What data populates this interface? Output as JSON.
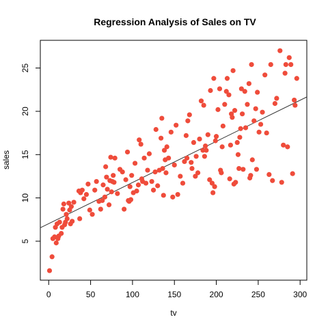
{
  "chart_data": {
    "type": "scatter",
    "title": "Regression Analysis of Sales on TV",
    "xlabel": "tv",
    "ylabel": "sales",
    "xlim": [
      -10,
      308
    ],
    "ylim": [
      0.5,
      28.2
    ],
    "xticks": [
      0,
      50,
      100,
      150,
      200,
      250,
      300
    ],
    "yticks": [
      5,
      10,
      15,
      20,
      25
    ],
    "grid": false,
    "point_color": "#ef4c3b",
    "line_color": "#333333",
    "regression": {
      "intercept": 7.03,
      "slope": 0.0475
    },
    "points": [
      [
        1,
        1.6
      ],
      [
        4,
        3.2
      ],
      [
        5,
        5.3
      ],
      [
        7,
        5.5
      ],
      [
        8,
        6.6
      ],
      [
        9,
        4.8
      ],
      [
        10,
        7.0
      ],
      [
        11,
        5.3
      ],
      [
        12,
        5.6
      ],
      [
        13,
        7.2
      ],
      [
        15,
        5.9
      ],
      [
        16,
        6.6
      ],
      [
        17,
        8.7
      ],
      [
        18,
        9.3
      ],
      [
        19,
        6.9
      ],
      [
        20,
        7.2
      ],
      [
        21,
        8.1
      ],
      [
        22,
        7.6
      ],
      [
        24,
        9.4
      ],
      [
        25,
        8.6
      ],
      [
        26,
        7.0
      ],
      [
        27,
        9.0
      ],
      [
        28,
        7.3
      ],
      [
        30,
        9.5
      ],
      [
        36,
        10.8
      ],
      [
        37,
        7.6
      ],
      [
        38,
        10.6
      ],
      [
        40,
        10.9
      ],
      [
        42,
        9.9
      ],
      [
        45,
        10.4
      ],
      [
        47,
        11.6
      ],
      [
        49,
        8.6
      ],
      [
        52,
        8.1
      ],
      [
        55,
        10.9
      ],
      [
        57,
        11.9
      ],
      [
        60,
        9.6
      ],
      [
        62,
        8.7
      ],
      [
        64,
        9.7
      ],
      [
        65,
        11.5
      ],
      [
        67,
        10.1
      ],
      [
        68,
        13.6
      ],
      [
        69,
        12.4
      ],
      [
        70,
        11.0
      ],
      [
        72,
        9.2
      ],
      [
        73,
        12.0
      ],
      [
        74,
        14.7
      ],
      [
        75,
        10.7
      ],
      [
        76,
        11.9
      ],
      [
        77,
        12.6
      ],
      [
        78,
        11.8
      ],
      [
        79,
        14.6
      ],
      [
        82,
        10.5
      ],
      [
        85,
        13.3
      ],
      [
        88,
        13.0
      ],
      [
        90,
        8.7
      ],
      [
        92,
        12.1
      ],
      [
        94,
        15.3
      ],
      [
        95,
        9.7
      ],
      [
        96,
        9.6
      ],
      [
        97,
        11.3
      ],
      [
        98,
        9.8
      ],
      [
        99,
        12.6
      ],
      [
        101,
        10.6
      ],
      [
        103,
        14.0
      ],
      [
        105,
        10.8
      ],
      [
        107,
        11.5
      ],
      [
        108,
        16.7
      ],
      [
        110,
        16.2
      ],
      [
        111,
        12.2
      ],
      [
        112,
        11.9
      ],
      [
        114,
        14.6
      ],
      [
        116,
        11.7
      ],
      [
        118,
        13.2
      ],
      [
        120,
        15.1
      ],
      [
        123,
        11.9
      ],
      [
        125,
        10.9
      ],
      [
        127,
        13.0
      ],
      [
        128,
        17.9
      ],
      [
        130,
        11.4
      ],
      [
        132,
        13.2
      ],
      [
        134,
        16.9
      ],
      [
        135,
        19.2
      ],
      [
        136,
        13.4
      ],
      [
        137,
        10.3
      ],
      [
        138,
        15.5
      ],
      [
        139,
        14.4
      ],
      [
        140,
        12.9
      ],
      [
        141,
        15.9
      ],
      [
        143,
        14.6
      ],
      [
        146,
        17.6
      ],
      [
        148,
        10.1
      ],
      [
        150,
        13.8
      ],
      [
        152,
        18.4
      ],
      [
        154,
        10.4
      ],
      [
        157,
        12.5
      ],
      [
        160,
        11.7
      ],
      [
        162,
        14.2
      ],
      [
        164,
        17.2
      ],
      [
        165,
        14.6
      ],
      [
        166,
        18.9
      ],
      [
        168,
        19.6
      ],
      [
        170,
        14.1
      ],
      [
        171,
        13.4
      ],
      [
        173,
        16.4
      ],
      [
        175,
        12.5
      ],
      [
        176,
        14.8
      ],
      [
        178,
        12.9
      ],
      [
        180,
        16.8
      ],
      [
        182,
        21.2
      ],
      [
        184,
        15.5
      ],
      [
        185,
        20.7
      ],
      [
        186,
        14.8
      ],
      [
        187,
        16.0
      ],
      [
        188,
        15.5
      ],
      [
        190,
        17.3
      ],
      [
        192,
        12.1
      ],
      [
        193,
        22.4
      ],
      [
        195,
        11.7
      ],
      [
        196,
        10.6
      ],
      [
        197,
        23.8
      ],
      [
        198,
        11.3
      ],
      [
        199,
        16.6
      ],
      [
        200,
        17.1
      ],
      [
        202,
        20.2
      ],
      [
        204,
        22.6
      ],
      [
        205,
        13.2
      ],
      [
        206,
        12.9
      ],
      [
        207,
        15.9
      ],
      [
        208,
        18.3
      ],
      [
        210,
        20.8
      ],
      [
        212,
        22.3
      ],
      [
        213,
        23.8
      ],
      [
        215,
        21.9
      ],
      [
        216,
        12.2
      ],
      [
        217,
        16.1
      ],
      [
        218,
        19.7
      ],
      [
        219,
        19.3
      ],
      [
        220,
        24.7
      ],
      [
        221,
        11.6
      ],
      [
        222,
        20.1
      ],
      [
        223,
        11.8
      ],
      [
        225,
        16.4
      ],
      [
        226,
        15.0
      ],
      [
        227,
        13.4
      ],
      [
        228,
        17.0
      ],
      [
        229,
        18.0
      ],
      [
        230,
        22.6
      ],
      [
        231,
        19.7
      ],
      [
        232,
        13.3
      ],
      [
        234,
        22.3
      ],
      [
        235,
        18.1
      ],
      [
        237,
        20.8
      ],
      [
        239,
        23.2
      ],
      [
        240,
        12.3
      ],
      [
        241,
        12.6
      ],
      [
        242,
        25.4
      ],
      [
        243,
        14.4
      ],
      [
        245,
        18.9
      ],
      [
        247,
        20.3
      ],
      [
        248,
        13.3
      ],
      [
        249,
        22.2
      ],
      [
        251,
        17.6
      ],
      [
        253,
        18.5
      ],
      [
        255,
        19.9
      ],
      [
        258,
        24.2
      ],
      [
        260,
        17.5
      ],
      [
        263,
        12.7
      ],
      [
        265,
        25.4
      ],
      [
        267,
        12.0
      ],
      [
        270,
        20.9
      ],
      [
        272,
        21.5
      ],
      [
        276,
        27.0
      ],
      [
        278,
        11.8
      ],
      [
        280,
        16.1
      ],
      [
        282,
        24.4
      ],
      [
        283,
        25.4
      ],
      [
        285,
        15.9
      ],
      [
        287,
        26.2
      ],
      [
        289,
        25.4
      ],
      [
        291,
        12.8
      ],
      [
        293,
        21.3
      ],
      [
        294,
        20.7
      ],
      [
        296,
        23.8
      ]
    ]
  }
}
